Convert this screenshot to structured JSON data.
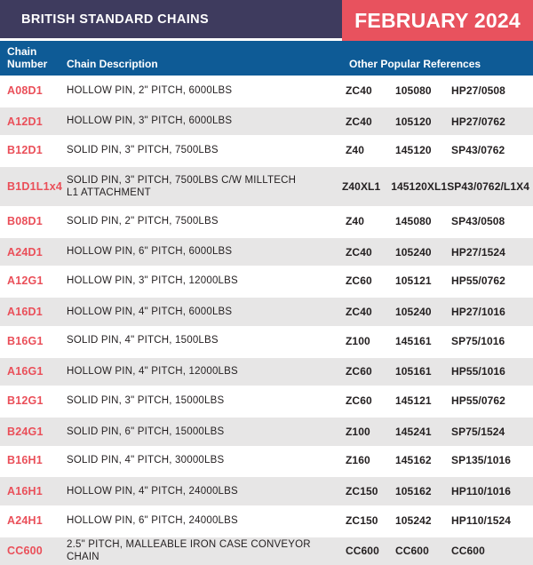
{
  "header": {
    "title": "BRITISH STANDARD CHAINS",
    "period": "FEBRUARY 2024"
  },
  "colors": {
    "navy_bar": "#3E3B5E",
    "date_badge": "#E8525E",
    "column_header_bar": "#0E5B96",
    "row_alternate": "#E7E6E6",
    "body_text": "#231F20",
    "chain_number_text": "#EA4F59"
  },
  "table": {
    "columns": [
      {
        "key": "number",
        "label": "Chain Number"
      },
      {
        "key": "description",
        "label": "Chain Description"
      },
      {
        "key": "refs",
        "label": "Other Popular References"
      }
    ],
    "rows": [
      {
        "number": "A08D1",
        "description": "HOLLOW PIN, 2\" PITCH, 6000LBS",
        "refs": [
          "ZC40",
          "105080",
          "HP27/0508"
        ]
      },
      {
        "number": "A12D1",
        "description": "HOLLOW PIN, 3\" PITCH, 6000LBS",
        "refs": [
          "ZC40",
          "105120",
          "HP27/0762"
        ]
      },
      {
        "number": "B12D1",
        "description": "SOLID PIN, 3\" PITCH, 7500LBS",
        "refs": [
          "Z40",
          "145120",
          "SP43/0762"
        ]
      },
      {
        "number": "B1D1L1x4",
        "description": "SOLID PIN, 3\" PITCH, 7500LBS C/W MILLTECH\nL1 ATTACHMENT",
        "refs": [
          "Z40XL1",
          "145120XL1",
          "SP43/0762/L1X4"
        ]
      },
      {
        "number": "B08D1",
        "description": "SOLID PIN, 2\" PITCH, 7500LBS",
        "refs": [
          "Z40",
          "145080",
          "SP43/0508"
        ]
      },
      {
        "number": "A24D1",
        "description": "HOLLOW PIN, 6\" PITCH, 6000LBS",
        "refs": [
          "ZC40",
          "105240",
          "HP27/1524"
        ]
      },
      {
        "number": "A12G1",
        "description": "HOLLOW PIN, 3\" PITCH, 12000LBS",
        "refs": [
          "ZC60",
          "105121",
          "HP55/0762"
        ]
      },
      {
        "number": "A16D1",
        "description": "HOLLOW PIN, 4\" PITCH, 6000LBS",
        "refs": [
          "ZC40",
          "105240",
          "HP27/1016"
        ]
      },
      {
        "number": "B16G1",
        "description": "SOLID PIN, 4\" PITCH, 1500LBS",
        "refs": [
          "Z100",
          "145161",
          "SP75/1016"
        ]
      },
      {
        "number": "A16G1",
        "description": "HOLLOW PIN, 4\" PITCH, 12000LBS",
        "refs": [
          "ZC60",
          "105161",
          "HP55/1016"
        ]
      },
      {
        "number": "B12G1",
        "description": "SOLID PIN, 3\" PITCH, 15000LBS",
        "refs": [
          "ZC60",
          "145121",
          "HP55/0762"
        ]
      },
      {
        "number": "B24G1",
        "description": "SOLID PIN, 6\" PITCH, 15000LBS",
        "refs": [
          "Z100",
          "145241",
          "SP75/1524"
        ]
      },
      {
        "number": "B16H1",
        "description": "SOLID PIN, 4\" PITCH, 30000LBS",
        "refs": [
          "Z160",
          "145162",
          "SP135/1016"
        ]
      },
      {
        "number": "A16H1",
        "description": "HOLLOW PIN, 4\" PITCH, 24000LBS",
        "refs": [
          "ZC150",
          "105162",
          "HP110/1016"
        ]
      },
      {
        "number": "A24H1",
        "description": "HOLLOW PIN, 6\" PITCH, 24000LBS",
        "refs": [
          "ZC150",
          "105242",
          "HP110/1524"
        ]
      },
      {
        "number": "CC600",
        "description": "2.5\" PITCH, MALLEABLE IRON CASE CONVEYOR CHAIN",
        "refs": [
          "CC600",
          "CC600",
          "CC600"
        ]
      }
    ]
  }
}
